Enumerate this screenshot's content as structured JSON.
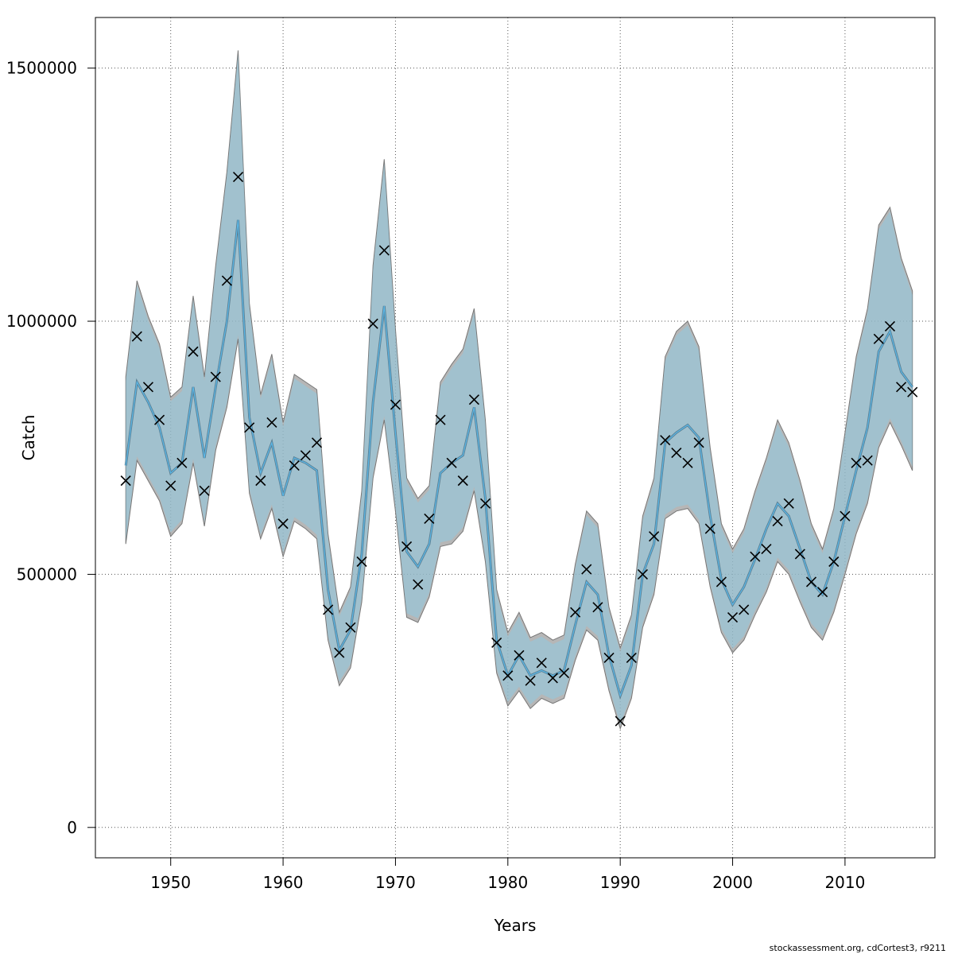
{
  "chart_data": {
    "type": "line",
    "xlabel": "Years",
    "ylabel": "Catch",
    "xlim": [
      1943.3,
      2018.0
    ],
    "ylim": [
      -60000,
      1600000
    ],
    "xticks": [
      1950,
      1960,
      1970,
      1980,
      1990,
      2000,
      2010
    ],
    "yticks": [
      0,
      500000,
      1000000,
      1500000
    ],
    "ytick_labels": [
      "0",
      "500000",
      "1000000",
      "1500000"
    ],
    "grid": true,
    "colors": {
      "band_gray": "#9e9e9e",
      "band_blue": "#87ceeb",
      "line_dark": "#5a7f93",
      "line_light": "#5bb8e8",
      "points": "#000000"
    },
    "x": [
      1946,
      1947,
      1948,
      1949,
      1950,
      1951,
      1952,
      1953,
      1954,
      1955,
      1956,
      1957,
      1958,
      1959,
      1960,
      1961,
      1962,
      1963,
      1964,
      1965,
      1966,
      1967,
      1968,
      1969,
      1970,
      1971,
      1972,
      1973,
      1974,
      1975,
      1976,
      1977,
      1978,
      1979,
      1980,
      1981,
      1982,
      1983,
      1984,
      1985,
      1986,
      1987,
      1988,
      1989,
      1990,
      1991,
      1992,
      1993,
      1994,
      1995,
      1996,
      1997,
      1998,
      1999,
      2000,
      2001,
      2002,
      2003,
      2004,
      2005,
      2006,
      2007,
      2008,
      2009,
      2010,
      2011,
      2012,
      2013,
      2014,
      2015,
      2016
    ],
    "observed": [
      685000,
      970000,
      870000,
      805000,
      675000,
      720000,
      940000,
      665000,
      890000,
      1080000,
      1285000,
      790000,
      685000,
      800000,
      600000,
      715000,
      735000,
      760000,
      430000,
      345000,
      395000,
      525000,
      995000,
      1140000,
      835000,
      555000,
      480000,
      610000,
      805000,
      720000,
      685000,
      845000,
      640000,
      365000,
      300000,
      340000,
      290000,
      325000,
      295000,
      305000,
      425000,
      510000,
      435000,
      335000,
      210000,
      335000,
      500000,
      575000,
      765000,
      740000,
      720000,
      760000,
      590000,
      485000,
      415000,
      430000,
      535000,
      550000,
      605000,
      640000,
      540000,
      485000,
      465000,
      525000,
      615000,
      720000,
      725000,
      965000,
      990000,
      870000,
      860000
    ],
    "series": [
      {
        "name": "",
        "estimate": [
          715000,
          880000,
          840000,
          790000,
          700000,
          720000,
          870000,
          730000,
          870000,
          1000000,
          1200000,
          810000,
          700000,
          760000,
          655000,
          730000,
          720000,
          705000,
          470000,
          350000,
          390000,
          540000,
          840000,
          1030000,
          780000,
          545000,
          515000,
          560000,
          700000,
          720000,
          735000,
          830000,
          650000,
          370000,
          300000,
          340000,
          300000,
          310000,
          300000,
          310000,
          400000,
          485000,
          460000,
          340000,
          260000,
          320000,
          500000,
          560000,
          760000,
          780000,
          795000,
          770000,
          615000,
          490000,
          440000,
          475000,
          530000,
          590000,
          640000,
          615000,
          550000,
          485000,
          460000,
          525000,
          615000,
          705000,
          790000,
          940000,
          980000,
          900000,
          870000
        ],
        "lower": [
          560000,
          725000,
          685000,
          645000,
          575000,
          600000,
          720000,
          595000,
          745000,
          830000,
          965000,
          660000,
          570000,
          630000,
          535000,
          605000,
          590000,
          570000,
          370000,
          280000,
          315000,
          445000,
          690000,
          805000,
          625000,
          415000,
          405000,
          455000,
          555000,
          560000,
          585000,
          665000,
          525000,
          305000,
          240000,
          270000,
          235000,
          255000,
          245000,
          255000,
          330000,
          390000,
          370000,
          270000,
          195000,
          255000,
          395000,
          460000,
          610000,
          625000,
          630000,
          600000,
          475000,
          385000,
          345000,
          370000,
          420000,
          465000,
          525000,
          500000,
          445000,
          395000,
          370000,
          425000,
          500000,
          580000,
          640000,
          750000,
          800000,
          755000,
          705000
        ],
        "upper": [
          890000,
          1080000,
          1010000,
          955000,
          850000,
          870000,
          1050000,
          890000,
          1110000,
          1295000,
          1535000,
          1035000,
          855000,
          935000,
          800000,
          895000,
          880000,
          865000,
          580000,
          425000,
          475000,
          665000,
          1110000,
          1320000,
          985000,
          690000,
          650000,
          675000,
          880000,
          915000,
          945000,
          1025000,
          805000,
          470000,
          385000,
          425000,
          375000,
          385000,
          370000,
          380000,
          520000,
          625000,
          600000,
          435000,
          355000,
          420000,
          615000,
          690000,
          930000,
          980000,
          1000000,
          950000,
          750000,
          600000,
          550000,
          590000,
          665000,
          730000,
          805000,
          760000,
          685000,
          600000,
          550000,
          630000,
          780000,
          930000,
          1025000,
          1190000,
          1225000,
          1125000,
          1060000
        ]
      }
    ]
  },
  "footer": {
    "credit": "stockassessment.org, cdCortest3, r9211"
  }
}
